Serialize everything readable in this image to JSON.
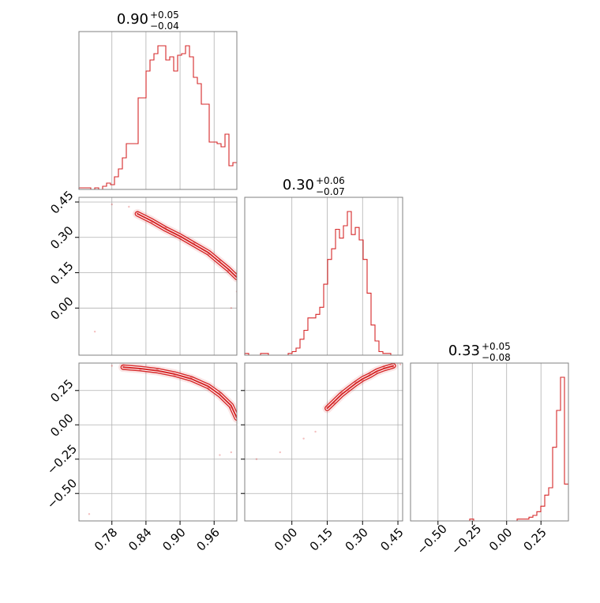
{
  "colors": {
    "series": "#d62728",
    "grid": "#b0b0b0",
    "frame": "#808080"
  },
  "chart_data": {
    "type": "corner",
    "grid": true,
    "parameters": [
      {
        "title": {
          "median": "0.90",
          "plus": "+0.05",
          "minus": "−0.04"
        },
        "range": [
          0.722,
          1.0
        ],
        "ticks": [
          "0.78",
          "0.84",
          "0.90",
          "0.96"
        ]
      },
      {
        "title": {
          "median": "0.30",
          "plus": "+0.06",
          "minus": "−0.07"
        },
        "range": [
          -0.2,
          0.47
        ],
        "ticks": [
          "0.00",
          "0.15",
          "0.30",
          "0.45"
        ]
      },
      {
        "title": {
          "median": "0.33",
          "plus": "+0.05",
          "minus": "−0.08"
        },
        "range": [
          -0.7,
          0.45
        ],
        "ticks": [
          "−0.50",
          "−0.25",
          "0.00",
          "0.25"
        ]
      }
    ],
    "histograms": [
      {
        "param": 0,
        "bin_start": 0.722,
        "bin_width": 0.00695,
        "counts": [
          1,
          1,
          1,
          0,
          1,
          0,
          2,
          4,
          3,
          8,
          13,
          20,
          29,
          29,
          29,
          58,
          58,
          75,
          82,
          86,
          91,
          91,
          82,
          84,
          75,
          85,
          86,
          91,
          84,
          71,
          67,
          54,
          54,
          30,
          30,
          29,
          27,
          35,
          15,
          17
        ]
      },
      {
        "param": 1,
        "bin_start": -0.2,
        "bin_width": 0.01675,
        "counts": [
          1,
          0,
          0,
          0,
          1,
          1,
          0,
          0,
          0,
          0,
          0,
          1,
          2,
          4,
          9,
          14,
          21,
          21,
          23,
          27,
          40,
          54,
          60,
          71,
          66,
          73,
          81,
          68,
          72,
          65,
          54,
          35,
          17,
          8,
          2,
          1,
          1,
          0,
          0,
          0
        ]
      },
      {
        "param": 2,
        "bin_start": -0.7,
        "bin_width": 0.02875,
        "counts": [
          0,
          0,
          0,
          0,
          0,
          0,
          0,
          0,
          0,
          0,
          0,
          0,
          0,
          0,
          0,
          1,
          0,
          0,
          0,
          0,
          0,
          0,
          0,
          0,
          0,
          0,
          0,
          1,
          1,
          1,
          2,
          3,
          5,
          8,
          14,
          18,
          40,
          60,
          78,
          20
        ]
      }
    ],
    "scatter_2d": [
      {
        "x_param": 0,
        "y_param": 1,
        "ridge": [
          [
            0.825,
            0.4
          ],
          [
            0.85,
            0.37
          ],
          [
            0.875,
            0.335
          ],
          [
            0.9,
            0.305
          ],
          [
            0.925,
            0.27
          ],
          [
            0.95,
            0.235
          ],
          [
            0.97,
            0.195
          ],
          [
            0.985,
            0.165
          ],
          [
            1.0,
            0.13
          ]
        ],
        "outliers": [
          [
            0.75,
            -0.1
          ],
          [
            0.78,
            0.44
          ],
          [
            0.99,
            0.0
          ],
          [
            1.0,
            0.07
          ],
          [
            0.81,
            0.43
          ]
        ]
      },
      {
        "x_param": 0,
        "y_param": 2,
        "ridge": [
          [
            0.8,
            0.42
          ],
          [
            0.83,
            0.41
          ],
          [
            0.86,
            0.395
          ],
          [
            0.89,
            0.37
          ],
          [
            0.92,
            0.335
          ],
          [
            0.95,
            0.28
          ],
          [
            0.97,
            0.22
          ],
          [
            0.99,
            0.14
          ],
          [
            1.0,
            0.05
          ]
        ],
        "outliers": [
          [
            0.74,
            -0.65
          ],
          [
            0.97,
            -0.22
          ],
          [
            0.99,
            -0.2
          ],
          [
            0.78,
            0.43
          ]
        ]
      },
      {
        "x_param": 1,
        "y_param": 2,
        "ridge": [
          [
            0.15,
            0.12
          ],
          [
            0.18,
            0.17
          ],
          [
            0.21,
            0.22
          ],
          [
            0.24,
            0.26
          ],
          [
            0.27,
            0.3
          ],
          [
            0.3,
            0.335
          ],
          [
            0.33,
            0.36
          ],
          [
            0.36,
            0.39
          ],
          [
            0.39,
            0.41
          ],
          [
            0.43,
            0.43
          ]
        ],
        "outliers": [
          [
            -0.15,
            -0.25
          ],
          [
            -0.05,
            -0.2
          ],
          [
            0.05,
            -0.1
          ],
          [
            0.1,
            -0.05
          ],
          [
            0.46,
            0.44
          ]
        ]
      }
    ]
  }
}
